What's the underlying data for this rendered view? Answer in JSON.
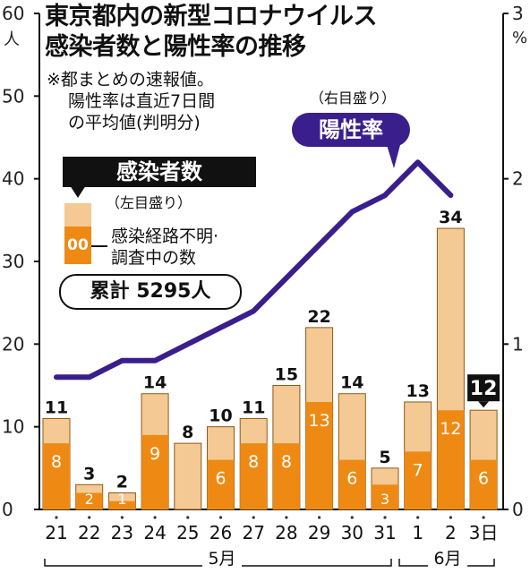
{
  "title_line1": "東京都内の新型コロナウイルス",
  "title_line2": "感染者数と陽性率の推移",
  "note_line1": "※都まとめの速報値。",
  "note_line2": "陽性率は直近7日間",
  "note_line3": "の平均値(判明分)",
  "right_axis_note": "（右目盛り）",
  "rate_label": "陽性率",
  "cases_label": "感染者数",
  "left_axis_note": "（左目盛り）",
  "legend_sample": "00",
  "legend_line1": "感染経路不明·",
  "legend_line2": "調査中の数",
  "total_label": "累計 5295人",
  "left_unit": "人",
  "right_unit": "%",
  "colors": {
    "unknown": "#ee8a14",
    "known": "#f5c993",
    "rate": "#3a1f8c",
    "axis": "#111111"
  },
  "chart_data": {
    "type": "bar",
    "categories": [
      "21",
      "22",
      "23",
      "24",
      "25",
      "26",
      "27",
      "28",
      "29",
      "30",
      "31",
      "1",
      "2",
      "3日"
    ],
    "month_labels": [
      "5月",
      "6月"
    ],
    "series": [
      {
        "name": "感染者数",
        "values": [
          11,
          3,
          2,
          14,
          8,
          10,
          11,
          15,
          22,
          14,
          5,
          13,
          34,
          12
        ]
      },
      {
        "name": "感染経路不明·調査中の数",
        "values": [
          8,
          2,
          1,
          9,
          null,
          6,
          8,
          8,
          13,
          6,
          3,
          7,
          12,
          6
        ]
      },
      {
        "name": "陽性率",
        "axis": "right",
        "values": [
          0.8,
          0.8,
          0.9,
          0.9,
          1.0,
          1.1,
          1.2,
          1.4,
          1.6,
          1.8,
          1.9,
          2.1,
          1.9,
          null
        ]
      }
    ],
    "left_ticks": [
      "0",
      "10",
      "20",
      "30",
      "40",
      "50",
      "60"
    ],
    "right_ticks": [
      "0",
      "1",
      "2",
      "3"
    ],
    "ylim_left": [
      0,
      60
    ],
    "ylim_right": [
      0,
      3
    ],
    "highlight_index": 13
  }
}
